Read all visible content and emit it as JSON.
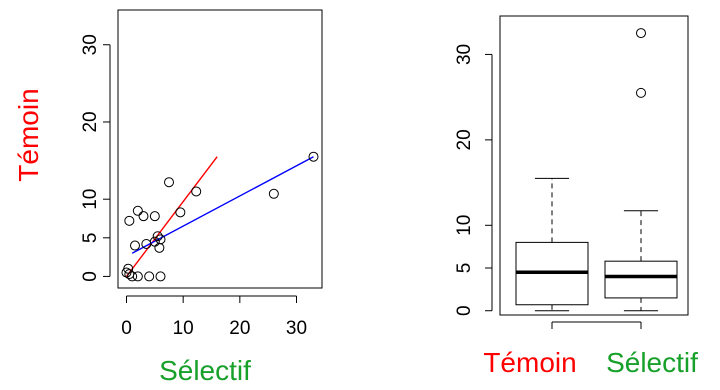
{
  "chart_data": [
    {
      "type": "scatter",
      "xlabel": "Sélectif",
      "ylabel": "Témoin",
      "xlim": [
        -1.5,
        34.5
      ],
      "ylim": [
        -1.5,
        34.5
      ],
      "xticks": [
        "0",
        "10",
        "20",
        "30"
      ],
      "yticks": [
        "0",
        "5",
        "10",
        "20",
        "30"
      ],
      "grid": false,
      "points": [
        {
          "x": 0,
          "y": 0.5
        },
        {
          "x": 0.3,
          "y": 1.0
        },
        {
          "x": 0.5,
          "y": 0.3
        },
        {
          "x": 1.0,
          "y": 0
        },
        {
          "x": 2.0,
          "y": 0
        },
        {
          "x": 4.0,
          "y": 0
        },
        {
          "x": 6.0,
          "y": 0
        },
        {
          "x": 1.5,
          "y": 4.0
        },
        {
          "x": 3.5,
          "y": 4.2
        },
        {
          "x": 5.0,
          "y": 4.5
        },
        {
          "x": 5.8,
          "y": 3.7
        },
        {
          "x": 6.0,
          "y": 4.8
        },
        {
          "x": 5.5,
          "y": 5.2
        },
        {
          "x": 0.5,
          "y": 7.2
        },
        {
          "x": 2.0,
          "y": 8.5
        },
        {
          "x": 3.0,
          "y": 7.8
        },
        {
          "x": 5.0,
          "y": 7.8
        },
        {
          "x": 9.5,
          "y": 8.3
        },
        {
          "x": 7.5,
          "y": 12.2
        },
        {
          "x": 12.3,
          "y": 11.0
        },
        {
          "x": 26.0,
          "y": 10.7
        },
        {
          "x": 33.0,
          "y": 15.5
        }
      ],
      "lines": [
        {
          "color": "#ff0000",
          "x": [
            0,
            16
          ],
          "y": [
            0,
            15.5
          ]
        },
        {
          "color": "#0000ff",
          "x": [
            1,
            33
          ],
          "y": [
            3.0,
            15.5
          ]
        }
      ],
      "label_colors": {
        "x": "#17a02a",
        "y": "#ff0000"
      }
    },
    {
      "type": "boxplot",
      "categories": [
        "Témoin",
        "Sélectif"
      ],
      "ylim": [
        -0.5,
        34.5
      ],
      "yticks": [
        "0",
        "5",
        "10",
        "20",
        "30"
      ],
      "boxes": [
        {
          "name": "Témoin",
          "min": 0,
          "q1": 0.7,
          "median": 4.5,
          "q3": 8.0,
          "max": 15.5,
          "outliers": []
        },
        {
          "name": "Sélectif",
          "min": 0,
          "q1": 1.5,
          "median": 4.0,
          "q3": 5.8,
          "max": 11.7,
          "outliers": [
            25.5,
            32.5
          ]
        }
      ],
      "label_colors": {
        "Témoin": "#ff0000",
        "Sélectif": "#17a02a"
      }
    }
  ]
}
